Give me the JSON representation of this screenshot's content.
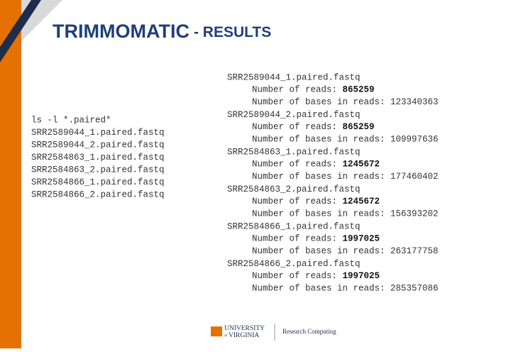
{
  "header": {
    "title": "TRIMMOMATIC",
    "subtitle": "- RESULTS"
  },
  "listing": {
    "command": "ls -l *.paired*",
    "files": [
      "SRR2589044_1.paired.fastq",
      "SRR2589044_2.paired.fastq",
      "SRR2584863_1.paired.fastq",
      "SRR2584863_2.paired.fastq",
      "SRR2584866_1.paired.fastq",
      "SRR2584866_2.paired.fastq"
    ]
  },
  "results": {
    "reads_label": "Number of reads:",
    "bases_label": "Number of bases in reads:",
    "files": [
      {
        "name": "SRR2589044_1.paired.fastq",
        "reads": 865259,
        "bases": 123340363
      },
      {
        "name": "SRR2589044_2.paired.fastq",
        "reads": 865259,
        "bases": 109997636
      },
      {
        "name": "SRR2584863_1.paired.fastq",
        "reads": 1245672,
        "bases": 177460402
      },
      {
        "name": "SRR2584863_2.paired.fastq",
        "reads": 1245672,
        "bases": 156393202
      },
      {
        "name": "SRR2584866_1.paired.fastq",
        "reads": 1997025,
        "bases": 263177758
      },
      {
        "name": "SRR2584866_2.paired.fastq",
        "reads": 1997025,
        "bases": 285357086
      }
    ]
  },
  "footer": {
    "logo_line1": "UNIVERSITY",
    "logo_of": "of",
    "logo_line2": "VIRGINIA",
    "department": "Research Computing"
  }
}
